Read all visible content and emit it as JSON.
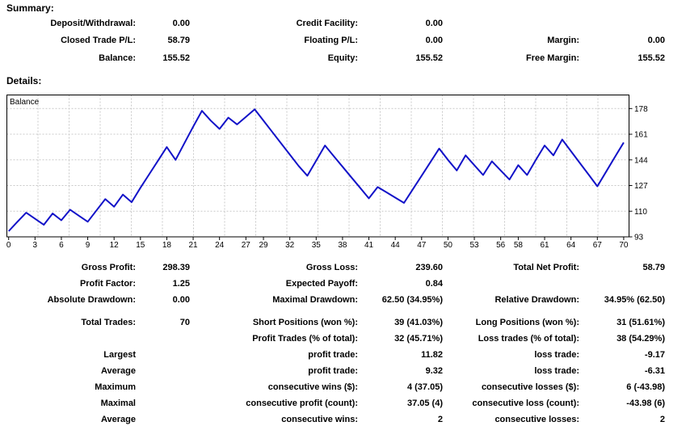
{
  "summary": {
    "heading": "Summary:",
    "rows": [
      [
        "Deposit/Withdrawal:",
        "0.00",
        "Credit Facility:",
        "0.00",
        "",
        ""
      ],
      [
        "Closed Trade P/L:",
        "58.79",
        "Floating P/L:",
        "0.00",
        "Margin:",
        "0.00"
      ],
      [
        "Balance:",
        "155.52",
        "Equity:",
        "155.52",
        "Free Margin:",
        "155.52"
      ]
    ]
  },
  "details": {
    "heading": "Details:",
    "rows": [
      [
        "Gross Profit:",
        "298.39",
        "Gross Loss:",
        "239.60",
        "Total Net Profit:",
        "58.79"
      ],
      [
        "Profit Factor:",
        "1.25",
        "Expected Payoff:",
        "0.84",
        "",
        ""
      ],
      [
        "Absolute Drawdown:",
        "0.00",
        "Maximal Drawdown:",
        "62.50 (34.95%)",
        "Relative Drawdown:",
        "34.95% (62.50)"
      ],
      [
        "Total Trades:",
        "70",
        "Short Positions (won %):",
        "39 (41.03%)",
        "Long Positions (won %):",
        "31 (51.61%)"
      ],
      [
        "",
        "",
        "Profit Trades (% of total):",
        "32 (45.71%)",
        "Loss trades (% of total):",
        "38 (54.29%)"
      ],
      [
        "Largest",
        "",
        "profit trade:",
        "11.82",
        "loss trade:",
        "-9.17"
      ],
      [
        "Average",
        "",
        "profit trade:",
        "9.32",
        "loss trade:",
        "-6.31"
      ],
      [
        "Maximum",
        "",
        "consecutive wins ($):",
        "4 (37.05)",
        "consecutive losses ($):",
        "6 (-43.98)"
      ],
      [
        "Maximal",
        "",
        "consecutive profit (count):",
        "37.05 (4)",
        "consecutive loss (count):",
        "-43.98 (6)"
      ],
      [
        "Average",
        "",
        "consecutive wins:",
        "2",
        "consecutive losses:",
        "2"
      ]
    ]
  },
  "chart_data": {
    "type": "line",
    "title": "Balance",
    "xlabel": "",
    "ylabel": "",
    "xlim": [
      0,
      70
    ],
    "ylim": [
      93,
      187
    ],
    "grid": true,
    "legend_position": "top-left-inside",
    "x_tick_labels": [
      0,
      3,
      6,
      9,
      12,
      15,
      18,
      21,
      24,
      27,
      29,
      32,
      35,
      38,
      41,
      44,
      47,
      50,
      53,
      56,
      58,
      61,
      64,
      67,
      70
    ],
    "y_ticks": [
      93,
      110,
      127,
      144,
      161,
      178
    ],
    "line_color": "#1212C8",
    "grid_color": "#C9C9C9",
    "border_color": "#000000",
    "series": [
      {
        "name": "Balance",
        "values": [
          96.73,
          103,
          109,
          105,
          101,
          108.5,
          104,
          111,
          107,
          103,
          110.5,
          118,
          113,
          121,
          116,
          125.5,
          134.5,
          143.5,
          152.5,
          144,
          155,
          166,
          176.5,
          170,
          164.5,
          172,
          167.5,
          172.5,
          177.5,
          170,
          162.5,
          155,
          147.5,
          140,
          133.5,
          143.5,
          153.5,
          146.5,
          139.5,
          132.5,
          125.5,
          118.5,
          126,
          122.5,
          119,
          115.5,
          124.5,
          133.5,
          142.5,
          151.5,
          144,
          137,
          147,
          140.5,
          134,
          143,
          137,
          131,
          140.5,
          134,
          144,
          153.5,
          147,
          157.5,
          149.7,
          142,
          134.3,
          126.5,
          136.2,
          145.9,
          155.52
        ]
      }
    ]
  }
}
